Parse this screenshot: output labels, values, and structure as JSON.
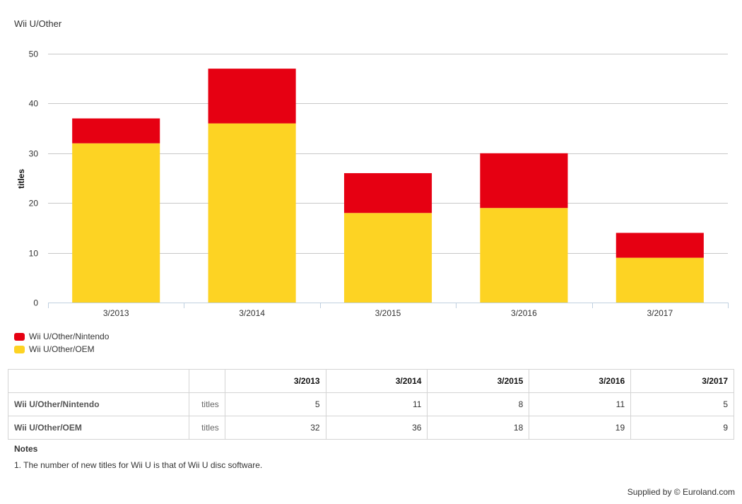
{
  "chart_data": {
    "type": "bar",
    "stacked": true,
    "title": "Wii U/Other",
    "ylabel": "titles",
    "xlabel": "",
    "categories": [
      "3/2013",
      "3/2014",
      "3/2015",
      "3/2016",
      "3/2017"
    ],
    "ylim": [
      0,
      50
    ],
    "yticks": [
      0,
      10,
      20,
      30,
      40,
      50
    ],
    "grid": true,
    "legend_position": "bottom-left",
    "series": [
      {
        "name": "Wii U/Other/OEM",
        "color": "#fdd323",
        "values": [
          32,
          36,
          18,
          19,
          9
        ]
      },
      {
        "name": "Wii U/Other/Nintendo",
        "color": "#e60012",
        "values": [
          5,
          11,
          8,
          11,
          5
        ]
      }
    ]
  },
  "legend": [
    {
      "label": "Wii U/Other/Nintendo",
      "color": "#e60012"
    },
    {
      "label": "Wii U/Other/OEM",
      "color": "#fdd323"
    }
  ],
  "table": {
    "headers": [
      "3/2013",
      "3/2014",
      "3/2015",
      "3/2016",
      "3/2017"
    ],
    "rows": [
      {
        "name": "Wii U/Other/Nintendo",
        "unit": "titles",
        "values": [
          "5",
          "11",
          "8",
          "11",
          "5"
        ]
      },
      {
        "name": "Wii U/Other/OEM",
        "unit": "titles",
        "values": [
          "32",
          "36",
          "18",
          "19",
          "9"
        ]
      }
    ]
  },
  "notes": {
    "title": "Notes",
    "text": "1. The number of new titles for Wii U is that of Wii U disc software."
  },
  "footer": {
    "supplied_by": "Supplied by © Euroland.com"
  }
}
